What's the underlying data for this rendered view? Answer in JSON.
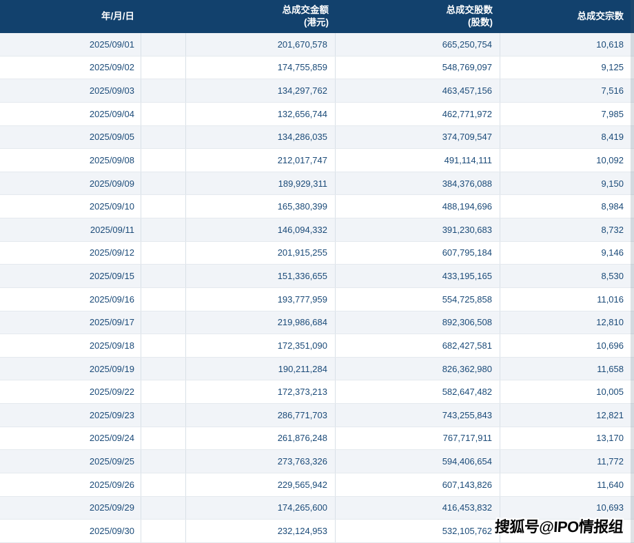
{
  "table": {
    "header": {
      "date": "年/月/日",
      "amount_line1": "总成交金额",
      "amount_line2": "(港元)",
      "shares_line1": "总成交股数",
      "shares_line2": "(股数)",
      "trades": "总成交宗数"
    },
    "rows": [
      {
        "date": "2025/09/01",
        "amount": "201,670,578",
        "shares": "665,250,754",
        "trades": "10,618"
      },
      {
        "date": "2025/09/02",
        "amount": "174,755,859",
        "shares": "548,769,097",
        "trades": "9,125"
      },
      {
        "date": "2025/09/03",
        "amount": "134,297,762",
        "shares": "463,457,156",
        "trades": "7,516"
      },
      {
        "date": "2025/09/04",
        "amount": "132,656,744",
        "shares": "462,771,972",
        "trades": "7,985"
      },
      {
        "date": "2025/09/05",
        "amount": "134,286,035",
        "shares": "374,709,547",
        "trades": "8,419"
      },
      {
        "date": "2025/09/08",
        "amount": "212,017,747",
        "shares": "491,114,111",
        "trades": "10,092"
      },
      {
        "date": "2025/09/09",
        "amount": "189,929,311",
        "shares": "384,376,088",
        "trades": "9,150"
      },
      {
        "date": "2025/09/10",
        "amount": "165,380,399",
        "shares": "488,194,696",
        "trades": "8,984"
      },
      {
        "date": "2025/09/11",
        "amount": "146,094,332",
        "shares": "391,230,683",
        "trades": "8,732"
      },
      {
        "date": "2025/09/12",
        "amount": "201,915,255",
        "shares": "607,795,184",
        "trades": "9,146"
      },
      {
        "date": "2025/09/15",
        "amount": "151,336,655",
        "shares": "433,195,165",
        "trades": "8,530"
      },
      {
        "date": "2025/09/16",
        "amount": "193,777,959",
        "shares": "554,725,858",
        "trades": "11,016"
      },
      {
        "date": "2025/09/17",
        "amount": "219,986,684",
        "shares": "892,306,508",
        "trades": "12,810"
      },
      {
        "date": "2025/09/18",
        "amount": "172,351,090",
        "shares": "682,427,581",
        "trades": "10,696"
      },
      {
        "date": "2025/09/19",
        "amount": "190,211,284",
        "shares": "826,362,980",
        "trades": "11,658"
      },
      {
        "date": "2025/09/22",
        "amount": "172,373,213",
        "shares": "582,647,482",
        "trades": "10,005"
      },
      {
        "date": "2025/09/23",
        "amount": "286,771,703",
        "shares": "743,255,843",
        "trades": "12,821"
      },
      {
        "date": "2025/09/24",
        "amount": "261,876,248",
        "shares": "767,717,911",
        "trades": "13,170"
      },
      {
        "date": "2025/09/25",
        "amount": "273,763,326",
        "shares": "594,406,654",
        "trades": "11,772"
      },
      {
        "date": "2025/09/26",
        "amount": "229,565,942",
        "shares": "607,143,826",
        "trades": "11,640"
      },
      {
        "date": "2025/09/29",
        "amount": "174,265,600",
        "shares": "416,453,832",
        "trades": "10,693"
      },
      {
        "date": "2025/09/30",
        "amount": "232,124,953",
        "shares": "532,105,762",
        "trades": "9"
      }
    ]
  },
  "watermark": {
    "text": "搜狐号@IPO情报组"
  },
  "colors": {
    "header_bg": "#12416d",
    "header_text": "#ffffff",
    "data_text": "#1a4a78",
    "alt_row_bg": "#f1f4f8",
    "grid_line": "#d9e0e7"
  }
}
